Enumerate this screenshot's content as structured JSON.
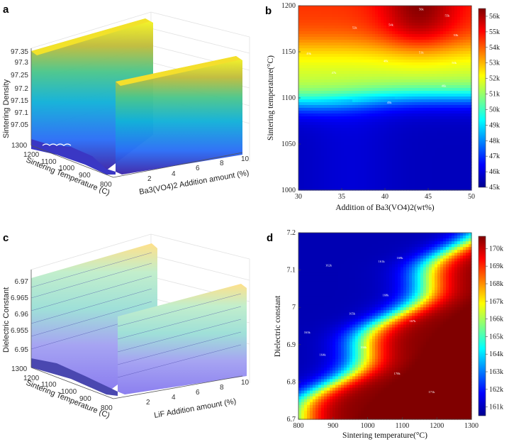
{
  "colors": {
    "jet": [
      "#00008f",
      "#0000ff",
      "#0080ff",
      "#00ffff",
      "#80ff80",
      "#ffff00",
      "#ff8000",
      "#ff0000",
      "#800000"
    ]
  },
  "chart_data": [
    {
      "panel": "a",
      "type": "surface3d",
      "colormap": "parula",
      "xlabel": "Ba3(VO4)2 Addition amount (%)",
      "ylabel": "Sintering Temperature (C)",
      "zlabel": "Sintering Density",
      "x_ticks": [
        "2",
        "4",
        "6",
        "8",
        "10"
      ],
      "y_ticks": [
        "800",
        "900",
        "1000",
        "1100",
        "1200",
        "1300"
      ],
      "z_ticks": [
        "97.05",
        "97.1",
        "97.15",
        "97.2",
        "97.25",
        "97.3",
        "97.35"
      ]
    },
    {
      "panel": "b",
      "type": "heatmap",
      "colormap": "jet",
      "xlabel": "Addition of Ba3(VO4)2(wt%)",
      "ylabel": "Sintering temperature(°C)",
      "xlim": [
        30,
        50
      ],
      "ylim": [
        1000,
        1200
      ],
      "x_ticks": [
        "30",
        "35",
        "40",
        "45",
        "50"
      ],
      "y_ticks": [
        "1000",
        "1050",
        "1100",
        "1150",
        "1200"
      ],
      "colorbar_ticks": [
        "45k",
        "46k",
        "47k",
        "48k",
        "49k",
        "50k",
        "51k",
        "52k",
        "53k",
        "54k",
        "55k",
        "56k"
      ],
      "colorbar_range": [
        45000,
        56500
      ],
      "contour_labels": [
        {
          "text": "56k",
          "x": 44.2,
          "y": 1195
        },
        {
          "text": "55k",
          "x": 47.2,
          "y": 1188
        },
        {
          "text": "54k",
          "x": 40.7,
          "y": 1178
        },
        {
          "text": "53k",
          "x": 48.2,
          "y": 1167
        },
        {
          "text": "52k",
          "x": 36.5,
          "y": 1175
        },
        {
          "text": "51k",
          "x": 44.2,
          "y": 1148
        },
        {
          "text": "49k",
          "x": 31.2,
          "y": 1147
        },
        {
          "text": "48k",
          "x": 40.1,
          "y": 1139
        },
        {
          "text": "50k",
          "x": 48.0,
          "y": 1137
        },
        {
          "text": "47k",
          "x": 34.1,
          "y": 1126
        },
        {
          "text": "46k",
          "x": 46.8,
          "y": 1112
        },
        {
          "text": "45k",
          "x": 40.5,
          "y": 1094
        }
      ]
    },
    {
      "panel": "c",
      "type": "surface3d",
      "colormap": "parula-light",
      "xlabel": "LiF Addition amount (%)",
      "ylabel": "Sintering Temperature (C)",
      "zlabel": "Dielectric Constant",
      "x_ticks": [
        "2",
        "4",
        "6",
        "8",
        "10"
      ],
      "y_ticks": [
        "800",
        "900",
        "1000",
        "1100",
        "1200",
        "1300"
      ],
      "z_ticks": [
        "6.95",
        "6.955",
        "6.96",
        "6.965",
        "6.97"
      ]
    },
    {
      "panel": "d",
      "type": "heatmap",
      "colormap": "jet",
      "xlabel": "Sintering temperature(°C)",
      "ylabel": "Dielectric constant",
      "xlim": [
        800,
        1300
      ],
      "ylim": [
        6.7,
        7.2
      ],
      "x_ticks": [
        "800",
        "900",
        "1000",
        "1100",
        "1200",
        "1300"
      ],
      "y_ticks": [
        "6.7",
        "6.8",
        "6.9",
        "7",
        "7.1",
        "7.2"
      ],
      "colorbar_ticks": [
        "161k",
        "162k",
        "163k",
        "164k",
        "165k",
        "166k",
        "167k",
        "168k",
        "169k",
        "170k"
      ],
      "colorbar_range": [
        160500,
        170700
      ],
      "contour_labels": [
        {
          "text": "162k",
          "x": 887,
          "y": 7.11
        },
        {
          "text": "163k",
          "x": 825,
          "y": 6.93
        },
        {
          "text": "164k",
          "x": 870,
          "y": 6.87
        },
        {
          "text": "165k",
          "x": 955,
          "y": 6.98
        },
        {
          "text": "166k",
          "x": 988,
          "y": 6.89
        },
        {
          "text": "168k",
          "x": 1052,
          "y": 7.03
        },
        {
          "text": "167k",
          "x": 1130,
          "y": 6.96
        },
        {
          "text": "169k",
          "x": 1093,
          "y": 7.13
        },
        {
          "text": "161k",
          "x": 1040,
          "y": 7.12
        },
        {
          "text": "170k",
          "x": 1085,
          "y": 6.82
        },
        {
          "text": "171k",
          "x": 1185,
          "y": 6.77
        }
      ]
    }
  ]
}
